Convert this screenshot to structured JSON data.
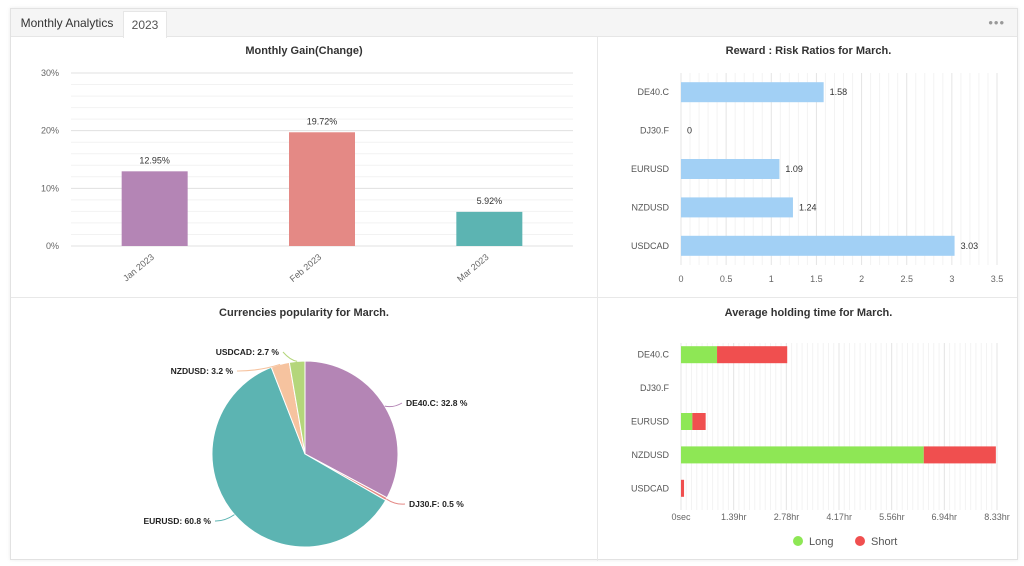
{
  "header": {
    "title": "Monthly Analytics",
    "tab_label": "2023",
    "menu_icon": "more-dots-icon"
  },
  "chart_data": [
    {
      "id": "monthly-gain",
      "type": "bar",
      "title": "Monthly Gain(Change)",
      "categories": [
        "Jan 2023",
        "Feb 2023",
        "Mar 2023"
      ],
      "values": [
        12.95,
        19.72,
        5.92
      ],
      "value_labels": [
        "12.95%",
        "19.72%",
        "5.92%"
      ],
      "colors": [
        "#b485b5",
        "#e48985",
        "#5cb4b2"
      ],
      "ylim": [
        0,
        30
      ],
      "yticks": [
        0,
        10,
        20,
        30
      ],
      "ytick_labels": [
        "0%",
        "10%",
        "20%",
        "30%"
      ],
      "grid": true
    },
    {
      "id": "reward-risk",
      "type": "bar",
      "orientation": "horizontal",
      "title": "Reward : Risk Ratios for March.",
      "categories": [
        "DE40.C",
        "DJ30.F",
        "EURUSD",
        "NZDUSD",
        "USDCAD"
      ],
      "values": [
        1.58,
        0,
        1.09,
        1.24,
        3.03
      ],
      "value_labels": [
        "1.58",
        "0",
        "1.09",
        "1.24",
        "3.03"
      ],
      "color": "#a2d0f5",
      "xlim": [
        0,
        3.5
      ],
      "xticks": [
        0,
        0.5,
        1,
        1.5,
        2,
        2.5,
        3,
        3.5
      ],
      "xtick_labels": [
        "0",
        "0.5",
        "1",
        "1.5",
        "2",
        "2.5",
        "3",
        "3.5"
      ],
      "grid": true
    },
    {
      "id": "currency-popularity",
      "type": "pie",
      "title": "Currencies popularity for March.",
      "slices": [
        {
          "name": "DE40.C",
          "value": 32.8,
          "label": "DE40.C: 32.8 %",
          "color": "#b485b5"
        },
        {
          "name": "DJ30.F",
          "value": 0.5,
          "label": "DJ30.F: 0.5 %",
          "color": "#e48985"
        },
        {
          "name": "EURUSD",
          "value": 60.8,
          "label": "EURUSD: 60.8 %",
          "color": "#5cb4b2"
        },
        {
          "name": "NZDUSD",
          "value": 3.2,
          "label": "NZDUSD: 3.2 %",
          "color": "#f6c39f"
        },
        {
          "name": "USDCAD",
          "value": 2.7,
          "label": "USDCAD: 2.7 %",
          "color": "#b4d67b"
        }
      ]
    },
    {
      "id": "holding-time",
      "type": "bar",
      "orientation": "horizontal",
      "stacked": true,
      "title": "Average holding time for March.",
      "categories": [
        "DE40.C",
        "DJ30.F",
        "EURUSD",
        "NZDUSD",
        "USDCAD"
      ],
      "xlabel_unit": "hr",
      "xlim": [
        0,
        8.33
      ],
      "xticks": [
        0,
        1.39,
        2.78,
        4.17,
        5.56,
        6.94,
        8.33
      ],
      "xtick_labels": [
        "0sec",
        "1.39hr",
        "2.78hr",
        "4.17hr",
        "5.56hr",
        "6.94hr",
        "8.33hr"
      ],
      "series": [
        {
          "name": "Long",
          "color": "#8ee755",
          "values": [
            0.95,
            0,
            0.3,
            6.4,
            0
          ]
        },
        {
          "name": "Short",
          "color": "#f04f4f",
          "values": [
            1.85,
            0,
            0.35,
            1.9,
            0.08
          ]
        }
      ],
      "legend": "bottom-center",
      "grid": true
    }
  ]
}
